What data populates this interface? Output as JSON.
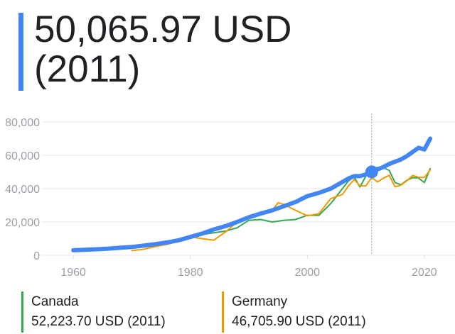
{
  "headline": {
    "value_text": "50,065.97 USD",
    "year_text": "(2011)",
    "accent_color": "#4285f4"
  },
  "chart_data": {
    "type": "line",
    "x_ticks": [
      1960,
      1980,
      2000,
      2020
    ],
    "y_ticks": [
      0,
      20000,
      40000,
      60000,
      80000
    ],
    "y_tick_labels": [
      "0",
      "20,000",
      "40,000",
      "60,000",
      "80,000"
    ],
    "xlim": [
      1955,
      2025
    ],
    "ylim": [
      0,
      80000
    ],
    "grid": true,
    "marker": {
      "x": 2011,
      "y": 50066
    },
    "series": [
      {
        "name": "",
        "color": "#4285f4",
        "x": [
          1960,
          1962,
          1964,
          1966,
          1968,
          1970,
          1972,
          1974,
          1976,
          1978,
          1980,
          1982,
          1984,
          1986,
          1988,
          1990,
          1992,
          1994,
          1996,
          1998,
          2000,
          2002,
          2004,
          2006,
          2007,
          2008,
          2009,
          2010,
          2011,
          2012,
          2013,
          2014,
          2015,
          2016,
          2017,
          2018,
          2019,
          2020,
          2021
        ],
        "y": [
          3000,
          3300,
          3600,
          4000,
          4500,
          5000,
          5800,
          6700,
          7700,
          9000,
          11000,
          13000,
          15500,
          17500,
          20000,
          22800,
          25000,
          27000,
          29500,
          32000,
          35500,
          37500,
          40000,
          44000,
          46000,
          47500,
          47500,
          48500,
          50066,
          51500,
          53000,
          54800,
          56200,
          57500,
          59500,
          62000,
          64500,
          63500,
          70000
        ]
      },
      {
        "name": "Canada",
        "color": "#34a853",
        "x": [
          1976,
          1978,
          1980,
          1982,
          1984,
          1986,
          1988,
          1990,
          1992,
          1994,
          1996,
          1998,
          2000,
          2002,
          2004,
          2006,
          2007,
          2008,
          2009,
          2010,
          2011,
          2012,
          2013,
          2014,
          2015,
          2016,
          2017,
          2018,
          2019,
          2020,
          2021
        ],
        "y": [
          8000,
          9000,
          11000,
          12500,
          13500,
          14500,
          16500,
          21000,
          21500,
          20000,
          21000,
          21500,
          24000,
          24000,
          31000,
          40000,
          44500,
          47000,
          41000,
          47500,
          52224,
          52700,
          52600,
          50900,
          43600,
          42300,
          45000,
          46600,
          46400,
          43600,
          52000
        ]
      },
      {
        "name": "Germany",
        "color": "#f29900",
        "x": [
          1970,
          1972,
          1974,
          1976,
          1978,
          1980,
          1981,
          1982,
          1984,
          1986,
          1988,
          1990,
          1991,
          1992,
          1994,
          1995,
          1996,
          1998,
          2000,
          2002,
          2004,
          2006,
          2007,
          2008,
          2009,
          2010,
          2011,
          2012,
          2013,
          2014,
          2015,
          2016,
          2017,
          2018,
          2019,
          2020,
          2021
        ],
        "y": [
          2800,
          3600,
          5200,
          6500,
          8500,
          12000,
          10500,
          10000,
          9000,
          14000,
          20000,
          22000,
          23000,
          26000,
          27000,
          31500,
          30500,
          27000,
          23700,
          25000,
          34000,
          36500,
          41500,
          45500,
          41700,
          41600,
          46706,
          44000,
          46300,
          48000,
          41100,
          42100,
          44700,
          47900,
          46800,
          46700,
          51200
        ]
      }
    ]
  },
  "legend": [
    {
      "name": "Canada",
      "value": "52,223.70 USD (2011)",
      "color": "#34a853"
    },
    {
      "name": "Germany",
      "value": "46,705.90 USD (2011)",
      "color": "#f29900"
    }
  ]
}
